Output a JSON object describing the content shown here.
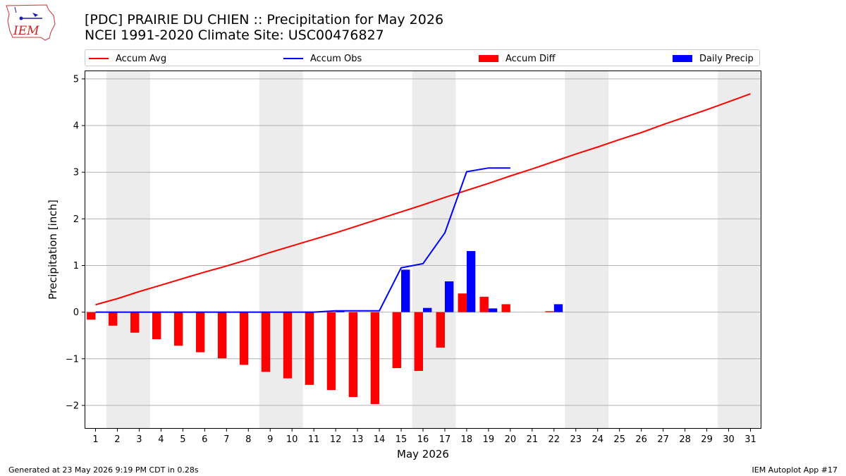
{
  "header": {
    "title_line1": "[PDC] PRAIRIE DU CHIEN :: Precipitation for May 2026",
    "title_line2": "NCEI 1991-2020 Climate Site: USC00476827",
    "logo_text": "IEM"
  },
  "legend": {
    "placement": "top, above plot",
    "items": [
      {
        "label": "Accum Avg",
        "kind": "line",
        "color": "#ff0000"
      },
      {
        "label": "Accum Obs",
        "kind": "line",
        "color": "#0000ff"
      },
      {
        "label": "Accum Diff",
        "kind": "bar",
        "color": "#ff0000"
      },
      {
        "label": "Daily Precip",
        "kind": "bar",
        "color": "#0000ff"
      }
    ]
  },
  "footer": {
    "left": "Generated at 23 May 2026 9:19 PM CDT in 0.28s",
    "right": "IEM Autoplot App #17"
  },
  "chart_data": {
    "type": "bar",
    "title": "[PDC] PRAIRIE DU CHIEN :: Precipitation for May 2026",
    "xlabel": "May 2026",
    "ylabel": "Precipitation [inch]",
    "ylim": [
      -2.5,
      5.18
    ],
    "xlim": [
      0.5,
      31.5
    ],
    "yticks": [
      -2,
      -1,
      0,
      1,
      2,
      3,
      4,
      5
    ],
    "grid": "horizontal",
    "weekend_shading": [
      [
        1.5,
        3.5
      ],
      [
        8.5,
        10.5
      ],
      [
        15.5,
        17.5
      ],
      [
        22.5,
        24.5
      ],
      [
        29.5,
        31.5
      ]
    ],
    "categories": [
      "1",
      "2",
      "3",
      "4",
      "5",
      "6",
      "7",
      "8",
      "9",
      "10",
      "11",
      "12",
      "13",
      "14",
      "15",
      "16",
      "17",
      "18",
      "19",
      "20",
      "21",
      "22",
      "23",
      "24",
      "25",
      "26",
      "27",
      "28",
      "29",
      "30",
      "31"
    ],
    "series": [
      {
        "name": "Accum Avg",
        "kind": "line",
        "color": "#ff0000",
        "x": [
          1,
          2,
          3,
          4,
          5,
          6,
          7,
          8,
          9,
          10,
          11,
          12,
          13,
          14,
          15,
          16,
          17,
          18,
          19,
          20,
          21,
          22,
          23,
          24,
          25,
          26,
          27,
          28,
          29,
          30,
          31
        ],
        "values": [
          0.16,
          0.29,
          0.44,
          0.58,
          0.72,
          0.86,
          0.99,
          1.13,
          1.28,
          1.42,
          1.56,
          1.7,
          1.85,
          2.0,
          2.15,
          2.3,
          2.46,
          2.61,
          2.76,
          2.92,
          3.07,
          3.23,
          3.39,
          3.54,
          3.7,
          3.85,
          4.02,
          4.18,
          4.34,
          4.51,
          4.68
        ]
      },
      {
        "name": "Accum Obs",
        "kind": "line",
        "color": "#0000ff",
        "x": [
          1,
          2,
          3,
          4,
          5,
          6,
          7,
          8,
          9,
          10,
          11,
          12,
          13,
          14,
          15,
          16,
          17,
          18,
          19,
          20
        ],
        "values": [
          0,
          0,
          0,
          0,
          0,
          0,
          0,
          0,
          0,
          0,
          0,
          0.03,
          0.03,
          0.03,
          0.95,
          1.04,
          1.7,
          3.01,
          3.09,
          3.09
        ]
      },
      {
        "name": "Accum Diff",
        "kind": "bar",
        "color": "#ff0000",
        "x": [
          1,
          2,
          3,
          4,
          5,
          6,
          7,
          8,
          9,
          10,
          11,
          12,
          13,
          14,
          15,
          16,
          17,
          18,
          19,
          20,
          21,
          22
        ],
        "values": [
          -0.16,
          -0.29,
          -0.44,
          -0.58,
          -0.72,
          -0.86,
          -0.99,
          -1.13,
          -1.28,
          -1.42,
          -1.56,
          -1.67,
          -1.82,
          -1.97,
          -1.2,
          -1.26,
          -0.76,
          0.4,
          0.33,
          0.17,
          0,
          0.02
        ]
      },
      {
        "name": "Daily Precip",
        "kind": "bar",
        "color": "#0000ff",
        "x": [
          12,
          15,
          16,
          17,
          18,
          19,
          22
        ],
        "values": [
          0.03,
          0.91,
          0.09,
          0.66,
          1.31,
          0.08,
          0.17
        ]
      }
    ]
  }
}
